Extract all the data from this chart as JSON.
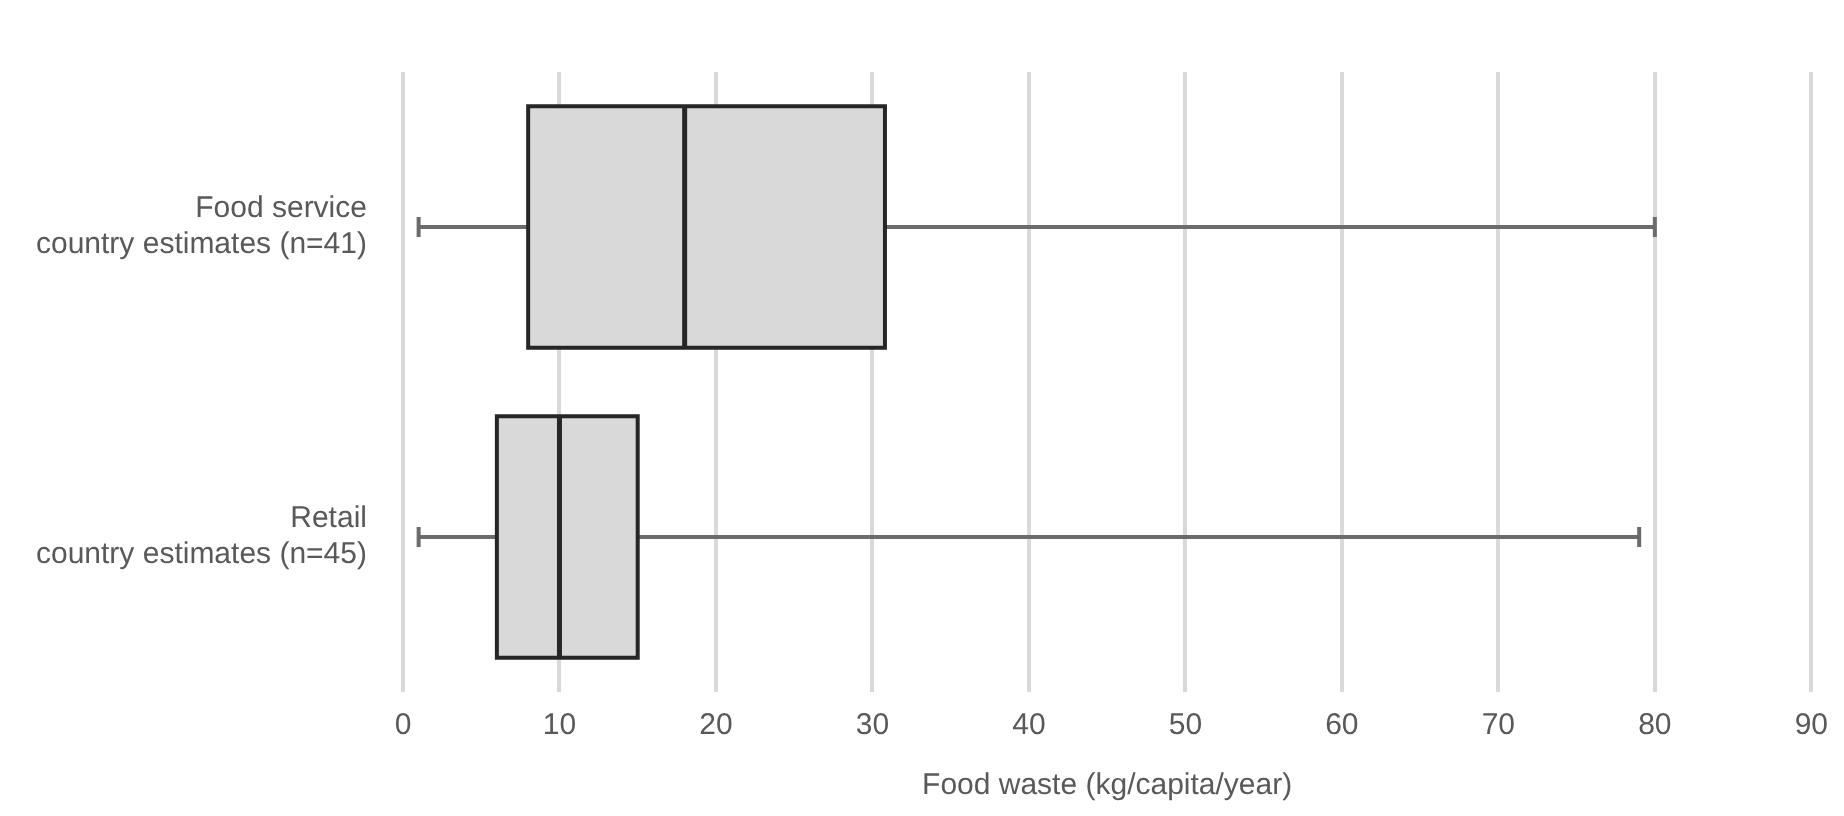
{
  "chart_data": {
    "type": "box",
    "orientation": "horizontal",
    "xlabel": "Food waste (kg/capita/year)",
    "categories": [
      "Food service\ncountry estimates (n=41)",
      "Retail\ncountry estimates (n=45)"
    ],
    "color": "#d9d9d9",
    "boxes": [
      {
        "low": 1,
        "q1": 8,
        "median": 18,
        "q3": 30.8,
        "high": 80
      },
      {
        "low": 1,
        "q1": 6,
        "median": 10,
        "q3": 15,
        "high": 79
      }
    ],
    "xlim": [
      0,
      90
    ],
    "xticks": [
      0,
      10,
      20,
      30,
      40,
      50,
      60,
      70,
      80,
      90
    ],
    "grid": "x",
    "legend": false
  }
}
